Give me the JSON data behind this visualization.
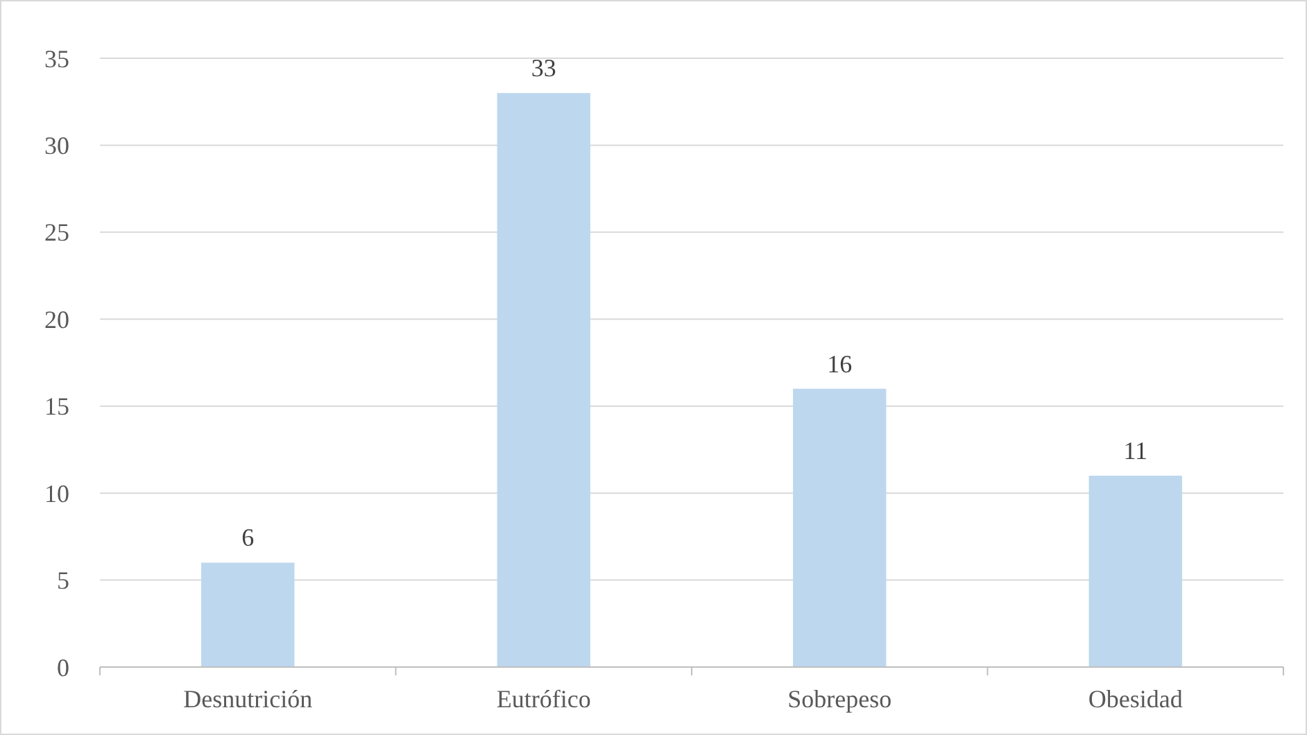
{
  "chart_data": {
    "type": "bar",
    "categories": [
      "Desnutrición",
      "Eutrófico",
      "Sobrepeso",
      "Obesidad"
    ],
    "values": [
      6,
      33,
      16,
      11
    ],
    "color": "#bdd7ee",
    "ylim": [
      0,
      35
    ],
    "yticks": [
      0,
      5,
      10,
      15,
      20,
      25,
      30,
      35
    ],
    "grid": "y",
    "data_labels": true
  }
}
